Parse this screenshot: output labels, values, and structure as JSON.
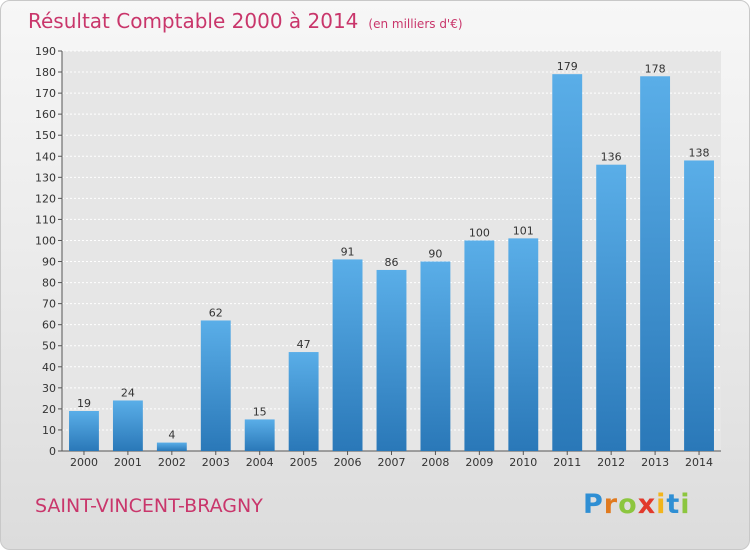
{
  "title": "Résultat Comptable 2000 à 2014",
  "title_unit": "(en milliers d'€)",
  "commune": "SAINT-VINCENT-BRAGNY",
  "logo": {
    "text": "Proxiti",
    "letter_colors": [
      "#2f8fd4",
      "#e07a1f",
      "#8cc63f",
      "#e23a2c",
      "#f2b51d",
      "#2f8fd4",
      "#8cc63f"
    ]
  },
  "colors": {
    "title": "#c9366b",
    "bar": "#3d93d6",
    "bar_light": "#5aaee8",
    "bar_dark": "#2a78b8"
  },
  "chart_data": {
    "type": "bar",
    "categories": [
      "2000",
      "2001",
      "2002",
      "2003",
      "2004",
      "2005",
      "2006",
      "2007",
      "2008",
      "2009",
      "2010",
      "2011",
      "2012",
      "2013",
      "2014"
    ],
    "values": [
      19,
      24,
      4,
      62,
      15,
      47,
      91,
      86,
      90,
      100,
      101,
      179,
      136,
      178,
      138
    ],
    "ylim": [
      0,
      190
    ],
    "ytick_step": 10,
    "grid": true,
    "xlabel": "",
    "ylabel": ""
  }
}
